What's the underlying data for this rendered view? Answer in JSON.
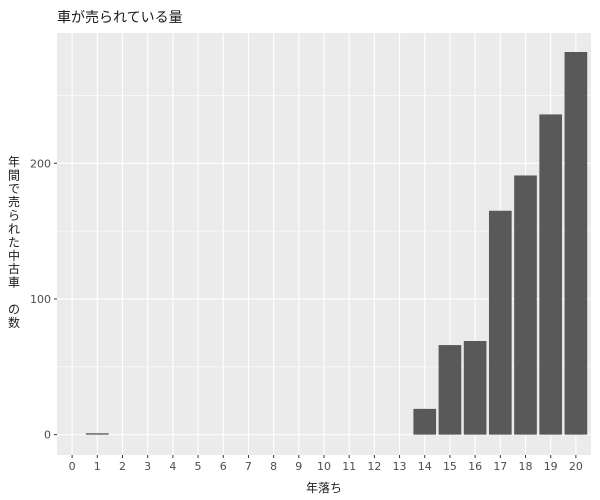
{
  "chart_data": {
    "type": "bar",
    "title": "車が売られている量",
    "xlabel": "年落ち",
    "ylabel": "年間で売られた中古車の数",
    "ylabel_lines": [
      "年",
      "間",
      "で",
      "売",
      "ら",
      "れ",
      "た",
      "中",
      "古",
      "車",
      "",
      "の",
      "数"
    ],
    "categories": [
      "0",
      "1",
      "2",
      "3",
      "4",
      "5",
      "6",
      "7",
      "8",
      "9",
      "10",
      "11",
      "12",
      "13",
      "14",
      "15",
      "16",
      "17",
      "18",
      "19",
      "20"
    ],
    "values": [
      0,
      1,
      0,
      0,
      0,
      0,
      0,
      0,
      0,
      0,
      0,
      0,
      0,
      0,
      19,
      66,
      69,
      165,
      191,
      236,
      282
    ],
    "yticks": [
      0,
      100,
      200
    ],
    "ylim": [
      -15,
      296
    ],
    "xlim": [
      -0.6,
      20.6
    ],
    "grid": true,
    "colors": {
      "panel": "#ebebeb",
      "grid_major": "#ffffff",
      "bar": "#595959",
      "text": "#1a1a1a",
      "tick_text": "#4d4d4d"
    }
  }
}
